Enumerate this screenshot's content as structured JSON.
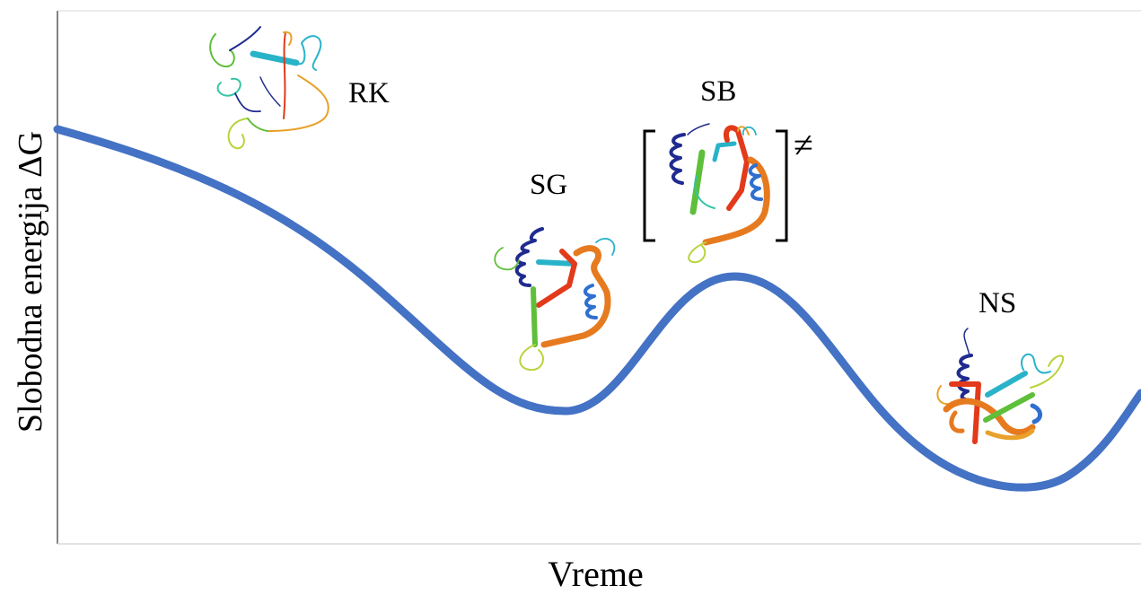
{
  "axes": {
    "y_title": "Slobodna energija ΔG",
    "x_title": "Vreme"
  },
  "states": [
    {
      "id": "rk",
      "label": "RK"
    },
    {
      "id": "sg",
      "label": "SG"
    },
    {
      "id": "sb",
      "label": "SB",
      "marker": "≠"
    },
    {
      "id": "ns",
      "label": "NS"
    }
  ],
  "colors": {
    "curve": "#4472c4",
    "axis": "#595959",
    "protein_palette": [
      "#1f2b8f",
      "#2f6fd0",
      "#29b3c9",
      "#33c4a4",
      "#5fbf3a",
      "#b7d43a",
      "#e8a12a",
      "#e67a1f",
      "#e23a1a"
    ]
  }
}
